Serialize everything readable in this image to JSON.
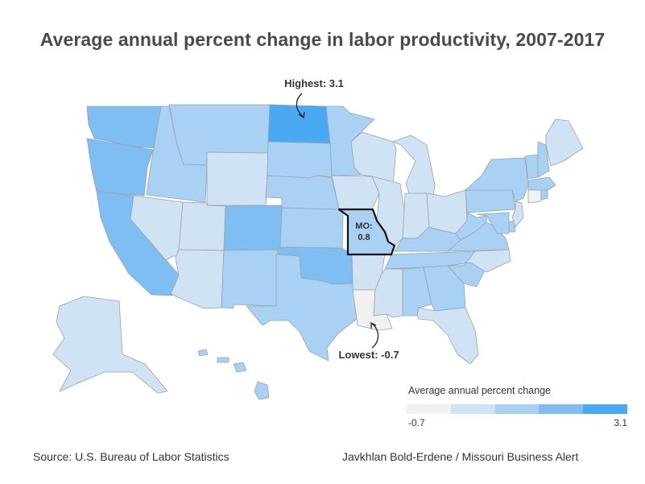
{
  "title": "Average annual percent change in labor productivity, 2007-2017",
  "annotations": {
    "highest": "Highest: 3.1",
    "lowest": "Lowest: -0.7",
    "mo_line1": "MO:",
    "mo_line2": "0.8"
  },
  "legend": {
    "title": "Average annual percent change",
    "min_label": "-0.7",
    "max_label": "3.1",
    "colors": [
      "#f1f1f1",
      "#cfe3f5",
      "#a8d1f3",
      "#7ebef2",
      "#4ba8f2"
    ]
  },
  "footer": {
    "source": "Source: U.S. Bureau of Labor Statistics",
    "credit": "Javkhlan Bold-Erdene / Missouri Business Alert"
  },
  "map_data": {
    "highlighted_state": "MO",
    "highest_state": "ND",
    "lowest_state": "LA",
    "state_classes": {
      "WA": 3,
      "OR": 3,
      "CA": 3,
      "ID": 2,
      "NV": 1,
      "MT": 2,
      "WY": 1,
      "UT": 1,
      "AZ": 1,
      "CO": 3,
      "NM": 2,
      "ND": 4,
      "SD": 2,
      "NE": 2,
      "KS": 2,
      "OK": 3,
      "TX": 2,
      "MN": 2,
      "IA": 1,
      "MO": 2,
      "AR": 1,
      "LA": 0,
      "WI": 1,
      "IL": 1,
      "MI": 1,
      "IN": 1,
      "OH": 1,
      "KY": 2,
      "TN": 2,
      "MS": 1,
      "AL": 2,
      "GA": 2,
      "FL": 1,
      "SC": 2,
      "NC": 1,
      "VA": 2,
      "WV": 2,
      "PA": 2,
      "NY": 2,
      "ME": 1,
      "NH": 2,
      "VT": 2,
      "MA": 2,
      "CT": 0,
      "RI": 2,
      "NJ": 1,
      "DE": 2,
      "MD": 2,
      "AK": 1,
      "HI": 2
    }
  }
}
